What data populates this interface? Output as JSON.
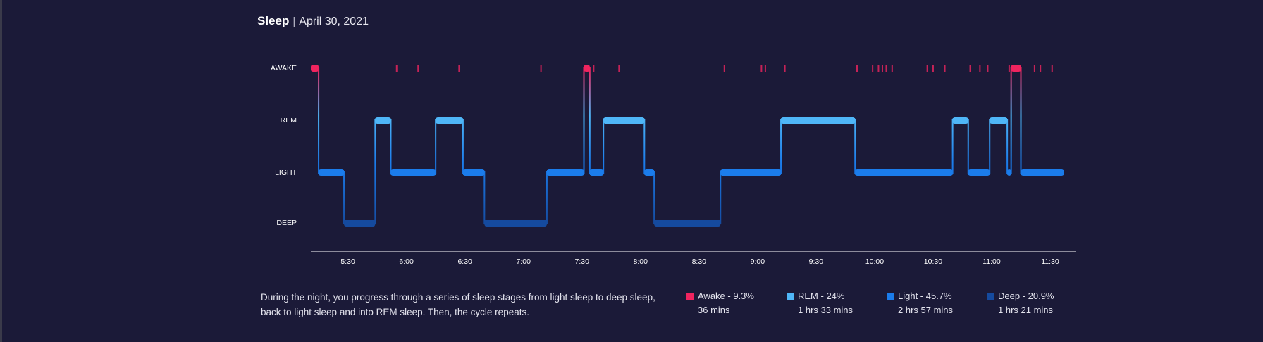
{
  "title": "Sleep",
  "separator": "|",
  "date": "April 30, 2021",
  "description": "During the night, you progress through a series of sleep stages from light sleep to deep sleep, back to light sleep and into REM sleep. Then, the cycle repeats.",
  "colors": {
    "background": "#1b1a38",
    "awake": "#f0245f",
    "rem": "#4fb6f7",
    "light": "#1b7ceb",
    "deep": "#154a9e",
    "axis": "#ffffff"
  },
  "legend": [
    {
      "label": "Awake - 9.3%",
      "duration": "36 mins",
      "stage": "awake"
    },
    {
      "label": "REM - 24%",
      "duration": "1 hrs 33 mins",
      "stage": "rem"
    },
    {
      "label": "Light - 45.7%",
      "duration": "2 hrs 57 mins",
      "stage": "light"
    },
    {
      "label": "Deep - 20.9%",
      "duration": "1 hrs 21 mins",
      "stage": "deep"
    }
  ],
  "chart_data": {
    "type": "line",
    "title": "",
    "xlabel": "",
    "ylabel": "",
    "y_categories": [
      "AWAKE",
      "REM",
      "LIGHT",
      "DEEP"
    ],
    "x_ticks": [
      "5:30",
      "6:00",
      "6:30",
      "7:00",
      "7:30",
      "8:00",
      "8:30",
      "9:00",
      "9:30",
      "10:00",
      "10:30",
      "11:00",
      "11:30"
    ],
    "x_range_minutes": [
      311,
      703
    ],
    "stages": [
      {
        "start": "5:11",
        "end": "5:15",
        "stage": "AWAKE"
      },
      {
        "start": "5:15",
        "end": "5:28",
        "stage": "LIGHT"
      },
      {
        "start": "5:28",
        "end": "5:44",
        "stage": "DEEP"
      },
      {
        "start": "5:44",
        "end": "5:52",
        "stage": "REM"
      },
      {
        "start": "5:52",
        "end": "6:15",
        "stage": "LIGHT"
      },
      {
        "start": "6:15",
        "end": "6:29",
        "stage": "REM"
      },
      {
        "start": "6:29",
        "end": "6:40",
        "stage": "LIGHT"
      },
      {
        "start": "6:40",
        "end": "7:12",
        "stage": "DEEP"
      },
      {
        "start": "7:12",
        "end": "7:31",
        "stage": "LIGHT"
      },
      {
        "start": "7:31",
        "end": "7:34",
        "stage": "AWAKE"
      },
      {
        "start": "7:34",
        "end": "7:41",
        "stage": "LIGHT"
      },
      {
        "start": "7:41",
        "end": "8:02",
        "stage": "REM"
      },
      {
        "start": "8:02",
        "end": "8:07",
        "stage": "LIGHT"
      },
      {
        "start": "8:07",
        "end": "8:41",
        "stage": "DEEP"
      },
      {
        "start": "8:41",
        "end": "9:12",
        "stage": "LIGHT"
      },
      {
        "start": "9:12",
        "end": "9:50",
        "stage": "REM"
      },
      {
        "start": "9:50",
        "end": "10:40",
        "stage": "LIGHT"
      },
      {
        "start": "10:40",
        "end": "10:48",
        "stage": "REM"
      },
      {
        "start": "10:48",
        "end": "10:59",
        "stage": "LIGHT"
      },
      {
        "start": "10:59",
        "end": "11:08",
        "stage": "REM"
      },
      {
        "start": "11:08",
        "end": "11:10",
        "stage": "LIGHT"
      },
      {
        "start": "11:10",
        "end": "11:15",
        "stage": "AWAKE"
      },
      {
        "start": "11:15",
        "end": "11:37",
        "stage": "LIGHT"
      }
    ],
    "brief_awakenings": [
      "5:55",
      "6:06",
      "6:27",
      "7:09",
      "7:36",
      "7:49",
      "8:43",
      "9:02",
      "9:04",
      "9:14",
      "9:51",
      "9:59",
      "10:02",
      "10:04",
      "10:06",
      "10:09",
      "10:27",
      "10:30",
      "10:36",
      "10:49",
      "10:54",
      "10:58",
      "11:09",
      "11:22",
      "11:25",
      "11:31"
    ]
  }
}
